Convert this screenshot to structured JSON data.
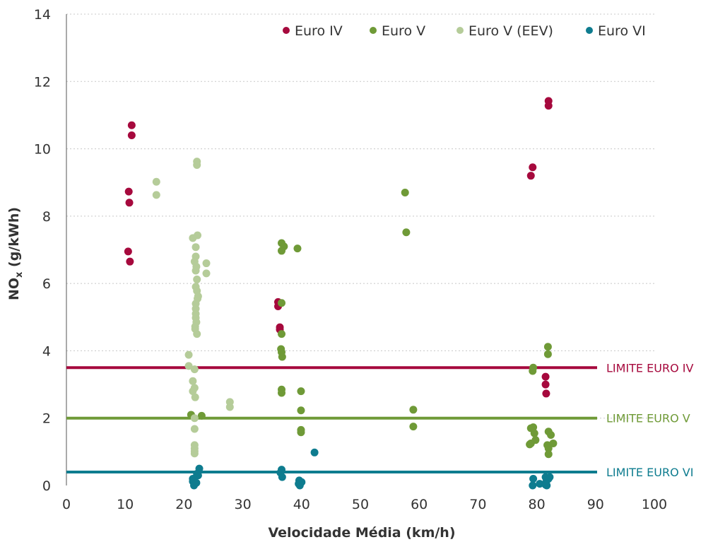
{
  "chart_data": {
    "type": "scatter",
    "xlabel": "Velocidade Média (km/h)",
    "ylabel_main": "NO",
    "ylabel_sub": "x",
    "ylabel_rest": " (g/kWh)",
    "xlim": [
      0,
      100
    ],
    "ylim": [
      0,
      14
    ],
    "x_ticks": [
      "0",
      "10",
      "20",
      "30",
      "40",
      "50",
      "60",
      "70",
      "80",
      "90",
      "100"
    ],
    "y_ticks": [
      "0",
      "2",
      "4",
      "6",
      "8",
      "10",
      "12",
      "14"
    ],
    "grid": "horizontal dotted",
    "legend_position": "top-right",
    "series": [
      {
        "name": "Euro IV",
        "color": "#a6093d",
        "points": [
          [
            10.5,
            6.95
          ],
          [
            10.8,
            6.65
          ],
          [
            10.6,
            8.73
          ],
          [
            10.7,
            8.4
          ],
          [
            11.1,
            10.7
          ],
          [
            11.1,
            10.4
          ],
          [
            36.0,
            5.45
          ],
          [
            36.0,
            5.32
          ],
          [
            36.3,
            4.7
          ],
          [
            36.3,
            4.63
          ],
          [
            79.0,
            9.2
          ],
          [
            79.3,
            9.45
          ],
          [
            82.0,
            11.42
          ],
          [
            82.0,
            11.28
          ],
          [
            81.5,
            3.23
          ],
          [
            81.5,
            3.0
          ],
          [
            81.6,
            2.73
          ]
        ]
      },
      {
        "name": "Euro V",
        "color": "#6f9a37",
        "points": [
          [
            21.2,
            2.1
          ],
          [
            23.0,
            2.07
          ],
          [
            36.6,
            7.2
          ],
          [
            37.0,
            7.1
          ],
          [
            36.6,
            6.97
          ],
          [
            36.6,
            5.42
          ],
          [
            36.6,
            4.5
          ],
          [
            36.5,
            4.05
          ],
          [
            36.6,
            3.96
          ],
          [
            36.7,
            3.82
          ],
          [
            36.6,
            2.85
          ],
          [
            36.6,
            2.75
          ],
          [
            39.3,
            7.04
          ],
          [
            39.9,
            2.8
          ],
          [
            39.9,
            2.23
          ],
          [
            39.9,
            1.65
          ],
          [
            39.9,
            1.58
          ],
          [
            57.6,
            8.7
          ],
          [
            57.8,
            7.52
          ],
          [
            59.0,
            2.25
          ],
          [
            59.0,
            1.75
          ],
          [
            79.4,
            3.5
          ],
          [
            79.3,
            3.4
          ],
          [
            79.0,
            1.7
          ],
          [
            79.4,
            1.73
          ],
          [
            79.6,
            1.55
          ],
          [
            79.0,
            1.25
          ],
          [
            78.8,
            1.22
          ],
          [
            79.8,
            1.35
          ],
          [
            81.9,
            4.12
          ],
          [
            81.9,
            3.9
          ],
          [
            82.0,
            1.6
          ],
          [
            82.4,
            1.5
          ],
          [
            81.8,
            1.2
          ],
          [
            82.0,
            1.1
          ],
          [
            82.0,
            0.93
          ],
          [
            82.8,
            1.25
          ]
        ]
      },
      {
        "name": "Euro V (EEV)",
        "color": "#b5cc99",
        "points": [
          [
            15.3,
            9.02
          ],
          [
            15.3,
            8.63
          ],
          [
            22.2,
            9.62
          ],
          [
            22.2,
            9.52
          ],
          [
            21.5,
            7.35
          ],
          [
            22.3,
            7.43
          ],
          [
            22.0,
            7.08
          ],
          [
            22.0,
            6.8
          ],
          [
            21.8,
            6.65
          ],
          [
            22.1,
            6.5
          ],
          [
            22.0,
            6.38
          ],
          [
            23.8,
            6.6
          ],
          [
            23.8,
            6.3
          ],
          [
            22.2,
            6.12
          ],
          [
            22.0,
            5.9
          ],
          [
            22.2,
            5.78
          ],
          [
            22.4,
            5.62
          ],
          [
            22.3,
            5.55
          ],
          [
            22.0,
            5.4
          ],
          [
            22.0,
            5.25
          ],
          [
            22.0,
            5.1
          ],
          [
            22.0,
            4.98
          ],
          [
            22.1,
            4.85
          ],
          [
            21.9,
            4.72
          ],
          [
            21.9,
            4.65
          ],
          [
            22.2,
            4.5
          ],
          [
            20.8,
            3.88
          ],
          [
            20.8,
            3.55
          ],
          [
            21.8,
            3.45
          ],
          [
            21.5,
            3.1
          ],
          [
            21.8,
            2.9
          ],
          [
            21.5,
            2.8
          ],
          [
            21.9,
            2.62
          ],
          [
            27.8,
            2.48
          ],
          [
            27.8,
            2.33
          ],
          [
            21.8,
            2.0
          ],
          [
            21.8,
            1.68
          ],
          [
            21.8,
            1.2
          ],
          [
            21.8,
            1.1
          ],
          [
            21.8,
            1.02
          ],
          [
            21.8,
            0.95
          ]
        ]
      },
      {
        "name": "Euro VI",
        "color": "#0e7c8f",
        "points": [
          [
            22.6,
            0.5
          ],
          [
            22.2,
            0.35
          ],
          [
            22.4,
            0.3
          ],
          [
            21.5,
            0.2
          ],
          [
            21.5,
            0.12
          ],
          [
            22.1,
            0.08
          ],
          [
            21.7,
            0.0
          ],
          [
            36.6,
            0.47
          ],
          [
            36.4,
            0.38
          ],
          [
            36.7,
            0.25
          ],
          [
            39.6,
            0.15
          ],
          [
            40.0,
            0.1
          ],
          [
            39.5,
            0.05
          ],
          [
            39.7,
            0.0
          ],
          [
            42.2,
            0.98
          ],
          [
            79.4,
            0.2
          ],
          [
            79.3,
            0.0
          ],
          [
            80.5,
            0.05
          ],
          [
            81.5,
            0.25
          ],
          [
            81.6,
            0.1
          ],
          [
            82.0,
            0.2
          ],
          [
            81.5,
            0.02
          ],
          [
            82.2,
            0.25
          ],
          [
            81.7,
            0.0
          ]
        ]
      }
    ],
    "limits": [
      {
        "label": "LIMITE EURO IV",
        "value": 3.5,
        "color": "#a6093d"
      },
      {
        "label": "LIMITE EURO V",
        "value": 2.0,
        "color": "#6f9a37"
      },
      {
        "label": "LIMITE EURO VI",
        "value": 0.4,
        "color": "#0e7c8f"
      }
    ]
  }
}
